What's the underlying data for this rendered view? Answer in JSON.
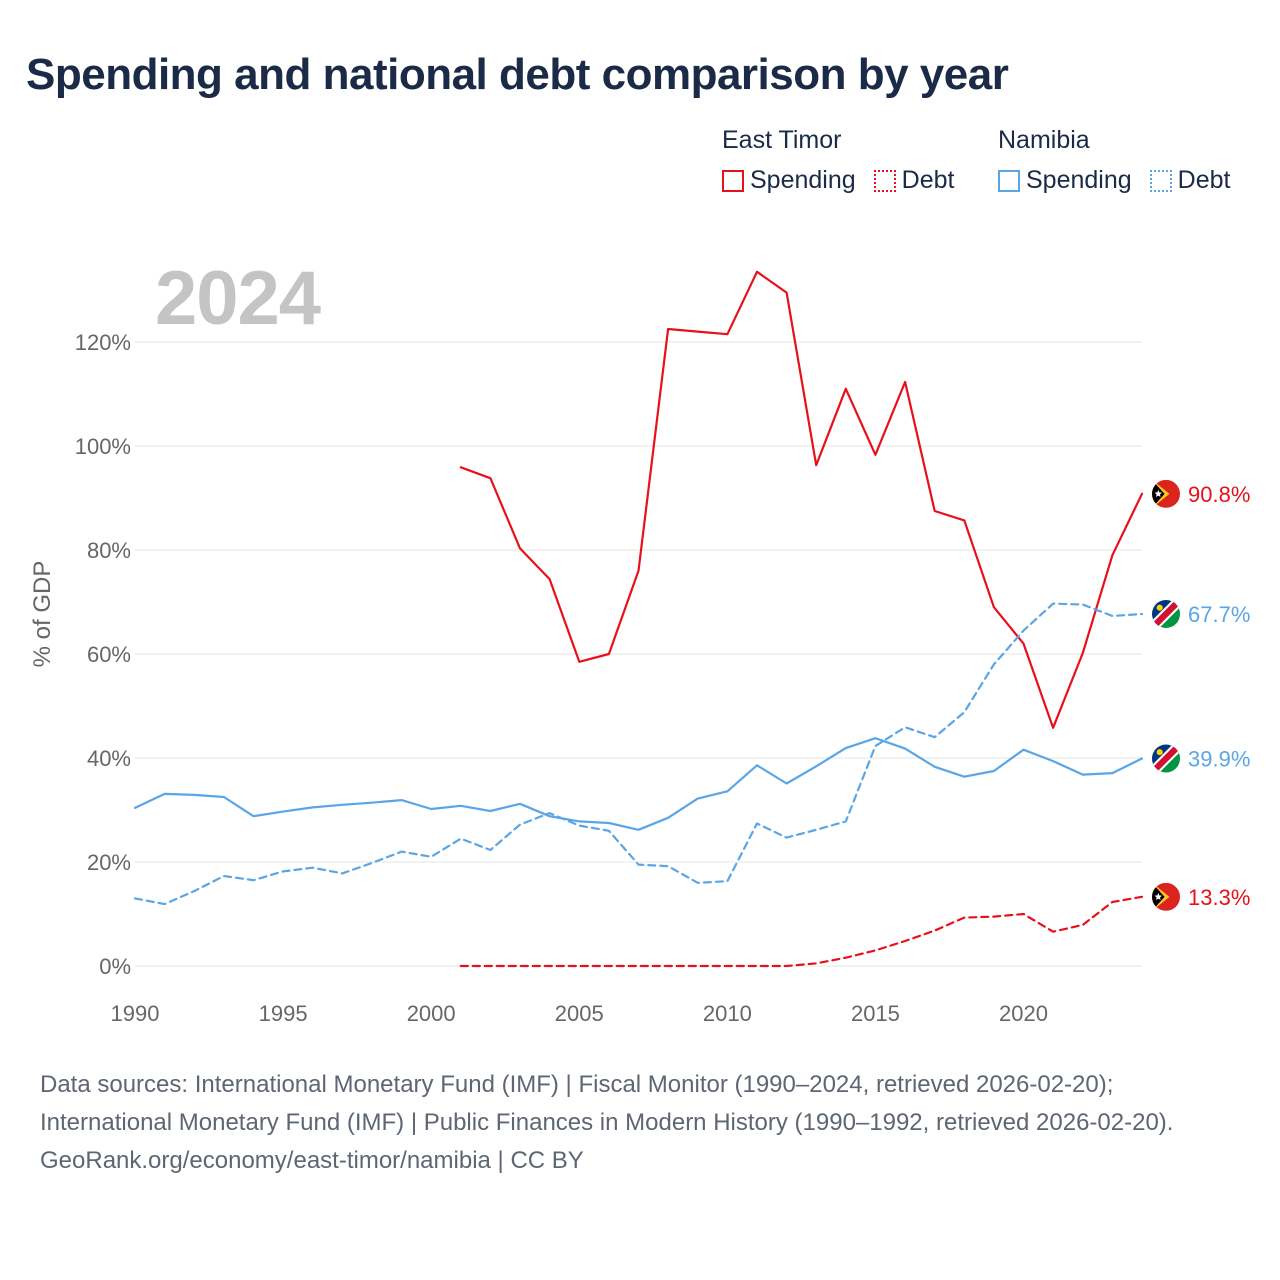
{
  "title": "Spending and national debt comparison by year",
  "year_label": "2024",
  "legend": {
    "groups": [
      {
        "country": "East Timor",
        "items": [
          {
            "label": "Spending",
            "style": "solid",
            "color": "#e8101a"
          },
          {
            "label": "Debt",
            "style": "dotted",
            "color": "#e8101a"
          }
        ]
      },
      {
        "country": "Namibia",
        "items": [
          {
            "label": "Spending",
            "style": "solid",
            "color": "#5aa5e6"
          },
          {
            "label": "Debt",
            "style": "dotted",
            "color": "#5aa5e6"
          }
        ]
      }
    ]
  },
  "colors": {
    "east_timor": "#e8101a",
    "namibia": "#5aa5e6",
    "grid": "#e6e6e6",
    "tick_text": "#666666",
    "year_watermark": "#c4c4c4"
  },
  "footer": {
    "sources": "Data sources: International Monetary Fund (IMF) | Fiscal Monitor (1990–2024, retrieved 2026-02-20); International Monetary Fund (IMF) | Public Finances in Modern History (1990–1992, retrieved 2026-02-20).",
    "credit": "GeoRank.org/economy/east-timor/namibia | CC BY"
  },
  "chart_data": {
    "type": "line",
    "title": "Spending and national debt comparison by year",
    "xlabel": "",
    "ylabel": "% of GDP",
    "xlim": [
      1990,
      2024
    ],
    "ylim": [
      0,
      130
    ],
    "x_ticks": [
      1990,
      1995,
      2000,
      2005,
      2010,
      2015,
      2020
    ],
    "y_ticks": [
      0,
      20,
      40,
      60,
      80,
      100,
      120
    ],
    "y_tick_labels": [
      "0%",
      "20%",
      "40%",
      "60%",
      "80%",
      "100%",
      "120%"
    ],
    "grid": true,
    "series": [
      {
        "name": "East Timor Spending",
        "country": "East Timor",
        "style": "solid",
        "color": "#e8101a",
        "end_label": "90.8%",
        "flag": "east-timor",
        "x": [
          2001,
          2002,
          2003,
          2004,
          2005,
          2006,
          2007,
          2008,
          2009,
          2010,
          2011,
          2012,
          2013,
          2014,
          2015,
          2016,
          2017,
          2018,
          2019,
          2020,
          2021,
          2022,
          2023,
          2024
        ],
        "values": [
          95.9,
          93.8,
          80.3,
          74.4,
          58.5,
          60.0,
          76.0,
          122.5,
          122.0,
          121.5,
          133.5,
          129.5,
          96.3,
          111.0,
          98.3,
          112.3,
          87.5,
          85.7,
          69.0,
          62.0,
          45.8,
          60.2,
          79.0,
          90.8
        ]
      },
      {
        "name": "East Timor Debt",
        "country": "East Timor",
        "style": "dashed",
        "color": "#e8101a",
        "end_label": "13.3%",
        "flag": "east-timor",
        "x": [
          2001,
          2002,
          2003,
          2004,
          2005,
          2006,
          2007,
          2008,
          2009,
          2010,
          2011,
          2012,
          2013,
          2014,
          2015,
          2016,
          2017,
          2018,
          2019,
          2020,
          2021,
          2022,
          2023,
          2024
        ],
        "values": [
          0.0,
          0.0,
          0.0,
          0.0,
          0.0,
          0.0,
          0.0,
          0.0,
          0.0,
          0.0,
          0.0,
          0.0,
          0.5,
          1.6,
          3.0,
          4.8,
          6.8,
          9.3,
          9.5,
          10.0,
          6.6,
          7.9,
          12.3,
          13.3
        ]
      },
      {
        "name": "Namibia Spending",
        "country": "Namibia",
        "style": "solid",
        "color": "#5aa5e6",
        "end_label": "39.9%",
        "flag": "namibia",
        "x": [
          1990,
          1991,
          1992,
          1993,
          1994,
          1995,
          1996,
          1997,
          1998,
          1999,
          2000,
          2001,
          2002,
          2003,
          2004,
          2005,
          2006,
          2007,
          2008,
          2009,
          2010,
          2011,
          2012,
          2013,
          2014,
          2015,
          2016,
          2017,
          2018,
          2019,
          2020,
          2021,
          2022,
          2023,
          2024
        ],
        "values": [
          30.4,
          33.1,
          32.9,
          32.5,
          28.8,
          29.7,
          30.5,
          31.0,
          31.4,
          31.9,
          30.2,
          30.8,
          29.8,
          31.2,
          28.8,
          27.8,
          27.5,
          26.2,
          28.5,
          32.2,
          33.6,
          38.6,
          35.1,
          38.4,
          41.9,
          43.8,
          41.8,
          38.3,
          36.4,
          37.5,
          41.6,
          39.4,
          36.8,
          37.1,
          39.9
        ]
      },
      {
        "name": "Namibia Debt",
        "country": "Namibia",
        "style": "dashed",
        "color": "#5aa5e6",
        "end_label": "67.7%",
        "flag": "namibia",
        "x": [
          1990,
          1991,
          1992,
          1993,
          1994,
          1995,
          1996,
          1997,
          1998,
          1999,
          2000,
          2001,
          2002,
          2003,
          2004,
          2005,
          2006,
          2007,
          2008,
          2009,
          2010,
          2011,
          2012,
          2013,
          2014,
          2015,
          2016,
          2017,
          2018,
          2019,
          2020,
          2021,
          2022,
          2023,
          2024
        ],
        "values": [
          13.0,
          11.9,
          14.4,
          17.3,
          16.5,
          18.2,
          18.9,
          17.8,
          19.8,
          22.0,
          21.0,
          24.5,
          22.3,
          27.2,
          29.4,
          27.0,
          26.0,
          19.5,
          19.2,
          16.0,
          16.3,
          27.4,
          24.7,
          26.2,
          27.8,
          42.3,
          45.9,
          44.0,
          48.8,
          58.0,
          64.5,
          69.7,
          69.5,
          67.3,
          67.7
        ]
      }
    ]
  }
}
